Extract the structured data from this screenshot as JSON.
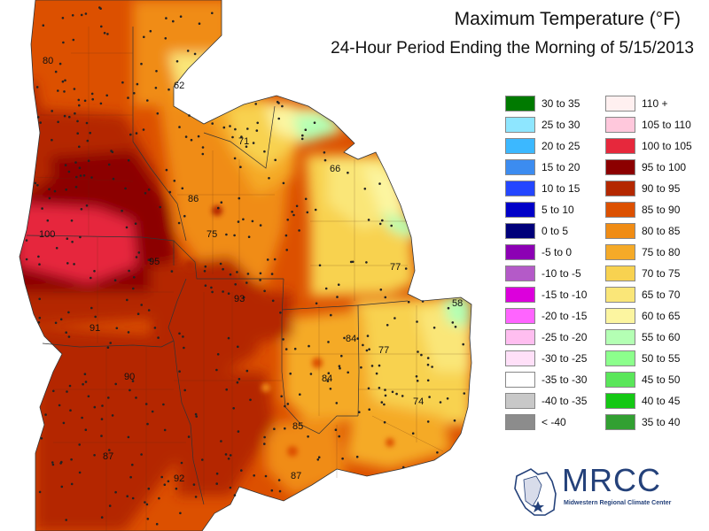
{
  "header": {
    "title": "Maximum Temperature (°F)",
    "subtitle": "24-Hour Period Ending the Morning of 5/15/2013"
  },
  "map_labels": [
    {
      "id": "label-80",
      "text": "80"
    },
    {
      "id": "label-62",
      "text": "62"
    },
    {
      "id": "label-71",
      "text": "71"
    },
    {
      "id": "label-66",
      "text": "66"
    },
    {
      "id": "label-86",
      "text": "86"
    },
    {
      "id": "label-100",
      "text": "100"
    },
    {
      "id": "label-75",
      "text": "75"
    },
    {
      "id": "label-95",
      "text": "95"
    },
    {
      "id": "label-77a",
      "text": "77"
    },
    {
      "id": "label-93",
      "text": "93"
    },
    {
      "id": "label-58",
      "text": "58"
    },
    {
      "id": "label-91",
      "text": "91"
    },
    {
      "id": "label-84a",
      "text": "84"
    },
    {
      "id": "label-77b",
      "text": "77"
    },
    {
      "id": "label-90",
      "text": "90"
    },
    {
      "id": "label-84b",
      "text": "84"
    },
    {
      "id": "label-74",
      "text": "74"
    },
    {
      "id": "label-85",
      "text": "85"
    },
    {
      "id": "label-87a",
      "text": "87"
    },
    {
      "id": "label-87b",
      "text": "87"
    },
    {
      "id": "label-92",
      "text": "92"
    }
  ],
  "legend": {
    "left": [
      {
        "label": "30 to 35",
        "color": "#007a00"
      },
      {
        "label": "25 to 30",
        "color": "#8ee6ff"
      },
      {
        "label": "20 to 25",
        "color": "#3cb8ff"
      },
      {
        "label": "15 to 20",
        "color": "#3c8cf0"
      },
      {
        "label": "10 to 15",
        "color": "#2446ff"
      },
      {
        "label": "5 to 10",
        "color": "#0000c8"
      },
      {
        "label": "0 to 5",
        "color": "#00007a"
      },
      {
        "label": "-5 to 0",
        "color": "#8c00b4"
      },
      {
        "label": "-10 to -5",
        "color": "#b45ac8"
      },
      {
        "label": "-15 to -10",
        "color": "#dc00dc"
      },
      {
        "label": "-20 to -15",
        "color": "#ff64ff"
      },
      {
        "label": "-25 to -20",
        "color": "#ffbef0"
      },
      {
        "label": "-30 to -25",
        "color": "#ffe0f8"
      },
      {
        "label": "-35 to -30",
        "color": "#ffffff"
      },
      {
        "label": "-40 to -35",
        "color": "#c8c8c8"
      },
      {
        "label": "< -40",
        "color": "#8c8c8c"
      }
    ],
    "right": [
      {
        "label": "110 +",
        "color": "#fff0f0"
      },
      {
        "label": "105 to 110",
        "color": "#ffc8dc"
      },
      {
        "label": "100 to 105",
        "color": "#e6283c"
      },
      {
        "label": "95 to 100",
        "color": "#8c0000"
      },
      {
        "label": "90 to 95",
        "color": "#b42800"
      },
      {
        "label": "85 to 90",
        "color": "#dc5000"
      },
      {
        "label": "80 to 85",
        "color": "#f08c14"
      },
      {
        "label": "75 to 80",
        "color": "#f5aa28"
      },
      {
        "label": "70 to 75",
        "color": "#f8d250"
      },
      {
        "label": "65 to 70",
        "color": "#fae678"
      },
      {
        "label": "60 to 65",
        "color": "#fcf5a0"
      },
      {
        "label": "55 to 60",
        "color": "#b4ffb4"
      },
      {
        "label": "50 to 55",
        "color": "#8cff8c"
      },
      {
        "label": "45 to 50",
        "color": "#5ae65a"
      },
      {
        "label": "40 to 45",
        "color": "#14c814"
      },
      {
        "label": "35 to 40",
        "color": "#32a032"
      }
    ]
  },
  "logo": {
    "name": "MRCC",
    "subtitle": "Midwestern Regional Climate Center"
  }
}
